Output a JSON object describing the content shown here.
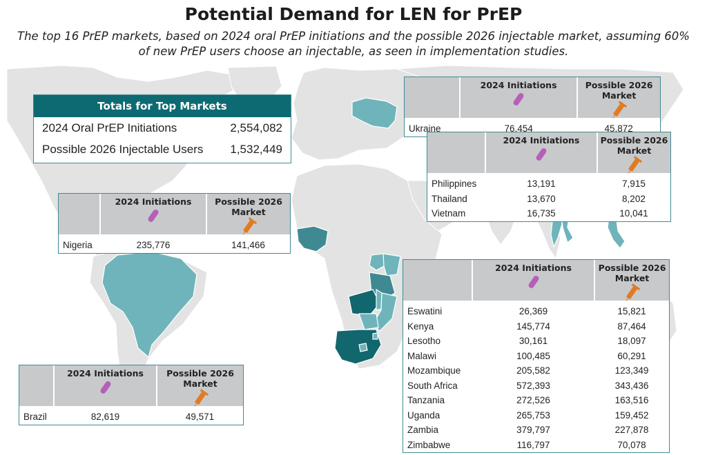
{
  "title": "Potential Demand for LEN for PrEP",
  "subtitle": "The top 16 PrEP markets, based on 2024 oral PrEP initiations and the possible 2026 injectable market, assuming 60% of new PrEP users choose an injectable, as seen in implementation studies.",
  "colors": {
    "land": "#e3e3e3",
    "highlight": "#6fb4bb",
    "highlight_dark": "#3f8a92",
    "south_africa": "#12666d",
    "header_teal": "#0d6a72",
    "table_header": "#c8c9cb",
    "pill": "#b65fb8",
    "syringe": "#e07b22"
  },
  "icons": {
    "initiations": "pill-icon",
    "market": "syringe-icon"
  },
  "columns": {
    "initiations": "2024 Initiations",
    "market": "Possible 2026 Market"
  },
  "totals": {
    "header": "Totals for Top Markets",
    "rows": [
      {
        "label": "2024 Oral PrEP Initiations",
        "value": "2,554,082"
      },
      {
        "label": "Possible 2026 Injectable Users",
        "value": "1,532,449"
      }
    ]
  },
  "tables": {
    "ukraine": [
      {
        "country": "Ukraine",
        "initiations": "76,454",
        "market": "45,872"
      }
    ],
    "asia": [
      {
        "country": "Philippines",
        "initiations": "13,191",
        "market": "7,915"
      },
      {
        "country": "Thailand",
        "initiations": "13,670",
        "market": "8,202"
      },
      {
        "country": "Vietnam",
        "initiations": "16,735",
        "market": "10,041"
      }
    ],
    "nigeria": [
      {
        "country": "Nigeria",
        "initiations": "235,776",
        "market": "141,466"
      }
    ],
    "brazil": [
      {
        "country": "Brazil",
        "initiations": "82,619",
        "market": "49,571"
      }
    ],
    "africa": [
      {
        "country": "Eswatini",
        "initiations": "26,369",
        "market": "15,821"
      },
      {
        "country": "Kenya",
        "initiations": "145,774",
        "market": "87,464"
      },
      {
        "country": "Lesotho",
        "initiations": "30,161",
        "market": "18,097"
      },
      {
        "country": "Malawi",
        "initiations": "100,485",
        "market": "60,291"
      },
      {
        "country": "Mozambique",
        "initiations": "205,582",
        "market": "123,349"
      },
      {
        "country": "South Africa",
        "initiations": "572,393",
        "market": "343,436"
      },
      {
        "country": "Tanzania",
        "initiations": "272,526",
        "market": "163,516"
      },
      {
        "country": "Uganda",
        "initiations": "265,753",
        "market": "159,452"
      },
      {
        "country": "Zambia",
        "initiations": "379,797",
        "market": "227,878"
      },
      {
        "country": "Zimbabwe",
        "initiations": "116,797",
        "market": "70,078"
      }
    ]
  }
}
